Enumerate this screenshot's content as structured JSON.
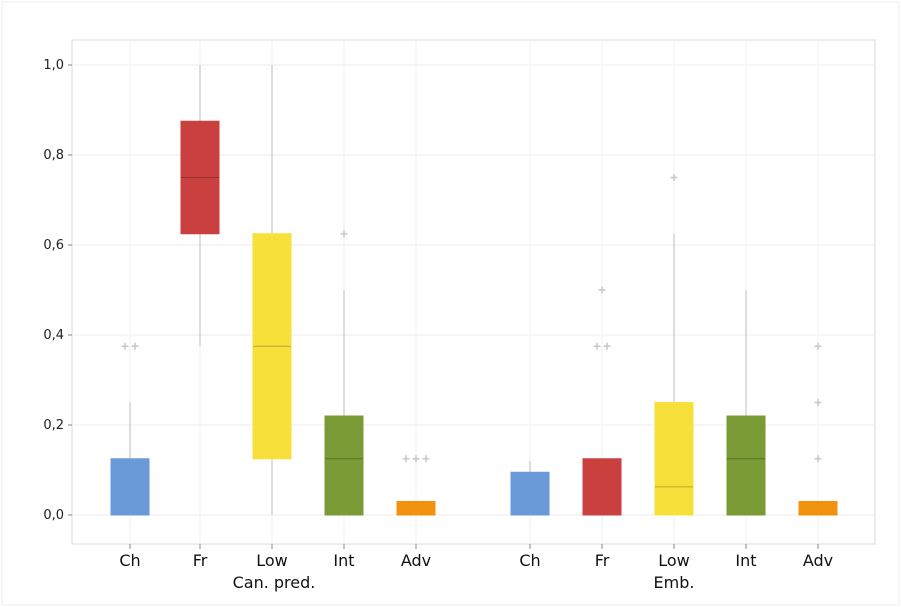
{
  "chart_data": {
    "type": "boxplot",
    "ylim": [
      -0.06,
      1.05
    ],
    "yticks": [
      "0,0",
      "0,2",
      "0,4",
      "0,6",
      "0,8",
      "1,0"
    ],
    "ytick_values": [
      0,
      0.2,
      0.4,
      0.6,
      0.8,
      1.0
    ],
    "grid": true,
    "groups": [
      {
        "label": "Can. pred.",
        "boxes": [
          {
            "category": "Ch",
            "color": "#6a9bd8",
            "whisker_low": 0,
            "q1": 0,
            "median": 0,
            "q3": 0.125,
            "whisker_high": 0.25,
            "outliers": [
              0.375,
              0.375
            ]
          },
          {
            "category": "Fr",
            "color": "#c9403f",
            "whisker_low": 0.375,
            "q1": 0.625,
            "median": 0.75,
            "q3": 0.875,
            "whisker_high": 1.0,
            "outliers": []
          },
          {
            "category": "Low",
            "color": "#f7e03a",
            "whisker_low": 0,
            "q1": 0.125,
            "median": 0.375,
            "q3": 0.625,
            "whisker_high": 1.0,
            "outliers": []
          },
          {
            "category": "Int",
            "color": "#7a9a35",
            "whisker_low": 0,
            "q1": 0,
            "median": 0.125,
            "q3": 0.22,
            "whisker_high": 0.5,
            "outliers": [
              0.625
            ]
          },
          {
            "category": "Adv",
            "color": "#f0920f",
            "whisker_low": 0,
            "q1": 0,
            "median": 0.03,
            "q3": 0.03,
            "whisker_high": 0.03,
            "outliers": [
              0.125,
              0.125,
              0.125
            ]
          }
        ]
      },
      {
        "label": "Emb.",
        "boxes": [
          {
            "category": "Ch",
            "color": "#6a9bd8",
            "whisker_low": 0,
            "q1": 0,
            "median": 0,
            "q3": 0.095,
            "whisker_high": 0.12,
            "outliers": []
          },
          {
            "category": "Fr",
            "color": "#c9403f",
            "whisker_low": 0,
            "q1": 0,
            "median": 0,
            "q3": 0.125,
            "whisker_high": 0.125,
            "outliers": [
              0.375,
              0.375,
              0.5
            ]
          },
          {
            "category": "Low",
            "color": "#f7e03a",
            "whisker_low": 0,
            "q1": 0,
            "median": 0.0625,
            "q3": 0.25,
            "whisker_high": 0.625,
            "outliers": [
              0.75
            ]
          },
          {
            "category": "Int",
            "color": "#7a9a35",
            "whisker_low": 0,
            "q1": 0,
            "median": 0.125,
            "q3": 0.22,
            "whisker_high": 0.5,
            "outliers": []
          },
          {
            "category": "Adv",
            "color": "#f0920f",
            "whisker_low": 0,
            "q1": 0,
            "median": 0.03,
            "q3": 0.03,
            "whisker_high": 0.03,
            "outliers": [
              0.125,
              0.25,
              0.375
            ]
          }
        ]
      }
    ]
  }
}
